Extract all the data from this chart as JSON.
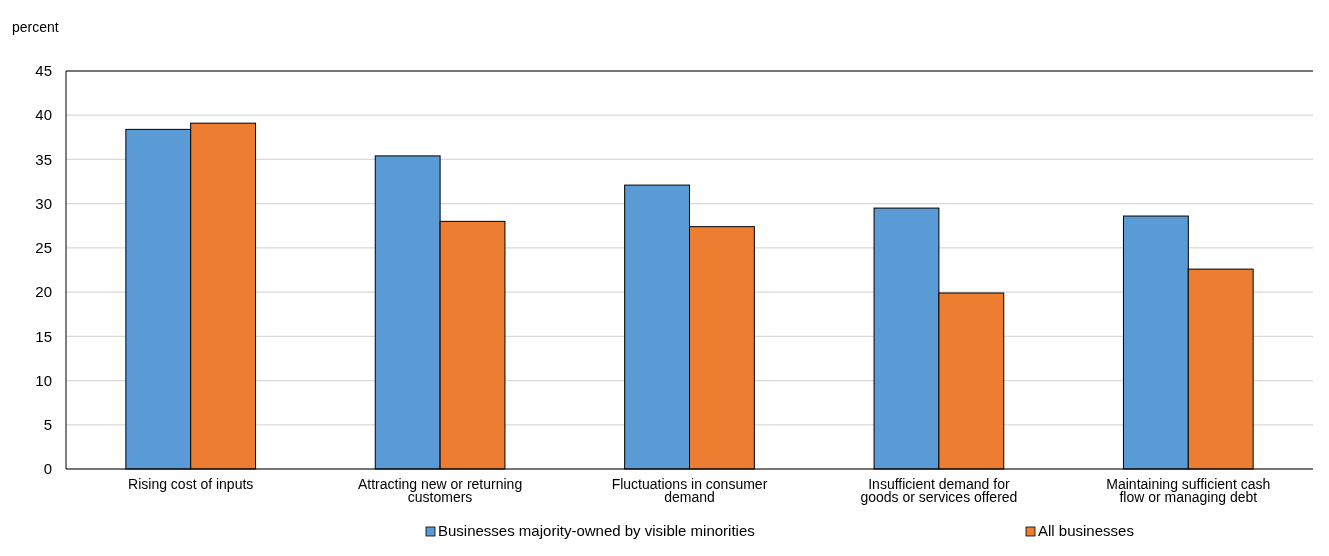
{
  "chart_data": {
    "type": "bar",
    "ylabel": "percent",
    "categories": [
      "Rising cost of inputs",
      "Attracting new or returning customers",
      "Fluctuations in consumer demand",
      "Insufficient demand for goods or services offered",
      "Maintaining sufficient cash flow or managing debt"
    ],
    "series": [
      {
        "name": "Businesses majority-owned by visible minorities",
        "color": "#5b9bd5",
        "values": [
          38.4,
          35.4,
          32.1,
          29.5,
          28.6
        ]
      },
      {
        "name": "All businesses",
        "color": "#ed7d31",
        "values": [
          39.1,
          28.0,
          27.4,
          19.9,
          22.6
        ]
      }
    ],
    "ylim": [
      0,
      45
    ],
    "yticks": [
      0,
      5,
      10,
      15,
      20,
      25,
      30,
      35,
      40,
      45
    ],
    "grid": "y",
    "legend": "bottom"
  }
}
